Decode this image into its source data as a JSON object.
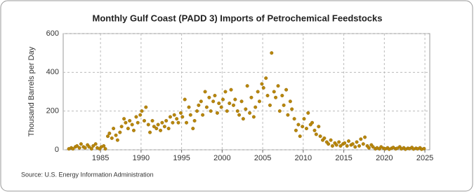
{
  "chart_data": {
    "type": "scatter",
    "title": "Monthly Gulf Coast (PADD 3) Imports of Petrochemical Feedstocks",
    "y_label": "Thousand Barrels per Day",
    "source": "Source: U.S. Energy Information Administration",
    "color": "#b8860b",
    "grid": true,
    "xlim": [
      1980.4,
      2025.6
    ],
    "ylim": [
      0,
      600
    ],
    "xticks": [
      1985,
      1990,
      1995,
      2000,
      2005,
      2010,
      2015,
      2020,
      2025
    ],
    "yticks": [
      0,
      200,
      400,
      600
    ],
    "x": [
      1981.1,
      1981.4,
      1981.6,
      1981.9,
      1982.1,
      1982.4,
      1982.6,
      1982.9,
      1983.1,
      1983.4,
      1983.6,
      1983.9,
      1984.1,
      1984.4,
      1984.6,
      1984.9,
      1985.1,
      1985.4,
      1985.6,
      1985.9,
      1986.1,
      1986.4,
      1986.6,
      1986.9,
      1987.1,
      1987.4,
      1987.6,
      1987.9,
      1988.1,
      1988.4,
      1988.6,
      1988.9,
      1989.1,
      1989.4,
      1989.6,
      1989.9,
      1990.1,
      1990.4,
      1990.6,
      1990.9,
      1991.1,
      1991.4,
      1991.6,
      1991.9,
      1992.1,
      1992.4,
      1992.6,
      1992.9,
      1993.1,
      1993.4,
      1993.6,
      1993.9,
      1994.1,
      1994.4,
      1994.6,
      1994.9,
      1995.1,
      1995.4,
      1995.6,
      1995.9,
      1996.1,
      1996.4,
      1996.6,
      1996.9,
      1997.1,
      1997.4,
      1997.6,
      1997.9,
      1998.1,
      1998.4,
      1998.6,
      1998.9,
      1999.1,
      1999.4,
      1999.6,
      1999.9,
      2000.1,
      2000.4,
      2000.6,
      2000.9,
      2001.1,
      2001.4,
      2001.6,
      2001.9,
      2002.1,
      2002.4,
      2002.6,
      2002.9,
      2003.1,
      2003.4,
      2003.6,
      2003.9,
      2004.1,
      2004.4,
      2004.6,
      2004.9,
      2005.1,
      2005.4,
      2005.6,
      2005.9,
      2006.1,
      2006.4,
      2006.6,
      2006.9,
      2007.1,
      2007.4,
      2007.6,
      2007.9,
      2008.1,
      2008.4,
      2008.6,
      2008.9,
      2009.1,
      2009.4,
      2009.6,
      2009.9,
      2010.1,
      2010.4,
      2010.6,
      2010.9,
      2011.1,
      2011.4,
      2011.6,
      2011.9,
      2012.1,
      2012.4,
      2012.6,
      2012.9,
      2013.1,
      2013.4,
      2013.6,
      2013.9,
      2014.1,
      2014.4,
      2014.6,
      2014.9,
      2015.1,
      2015.4,
      2015.6,
      2015.9,
      2016.1,
      2016.4,
      2016.6,
      2016.9,
      2017.1,
      2017.4,
      2017.6,
      2017.9,
      2018.1,
      2018.4,
      2018.6,
      2018.9,
      2019.1,
      2019.4,
      2019.6,
      2019.9,
      2020.1,
      2020.4,
      2020.6,
      2020.9,
      2021.1,
      2021.4,
      2021.6,
      2021.9,
      2022.1,
      2022.4,
      2022.6,
      2022.9,
      2023.1,
      2023.4,
      2023.6,
      2023.9,
      2024.1,
      2024.4,
      2024.6,
      2024.9
    ],
    "values": [
      5,
      10,
      5,
      15,
      20,
      10,
      30,
      15,
      10,
      25,
      15,
      5,
      20,
      30,
      10,
      5,
      15,
      20,
      5,
      70,
      85,
      60,
      110,
      75,
      50,
      90,
      120,
      160,
      140,
      110,
      150,
      130,
      100,
      170,
      140,
      180,
      200,
      150,
      220,
      130,
      90,
      150,
      120,
      110,
      130,
      100,
      140,
      120,
      150,
      110,
      170,
      140,
      180,
      160,
      140,
      190,
      170,
      260,
      140,
      220,
      180,
      110,
      150,
      200,
      230,
      250,
      180,
      300,
      220,
      270,
      200,
      250,
      280,
      190,
      240,
      220,
      260,
      300,
      200,
      240,
      310,
      230,
      260,
      200,
      180,
      250,
      160,
      210,
      330,
      190,
      270,
      170,
      220,
      300,
      250,
      340,
      320,
      370,
      280,
      230,
      500,
      300,
      270,
      330,
      200,
      280,
      230,
      310,
      180,
      250,
      210,
      160,
      100,
      130,
      70,
      120,
      160,
      110,
      190,
      130,
      140,
      100,
      80,
      120,
      70,
      50,
      60,
      40,
      30,
      50,
      20,
      35,
      25,
      40,
      20,
      30,
      35,
      20,
      45,
      25,
      30,
      15,
      40,
      20,
      55,
      30,
      65,
      20,
      10,
      25,
      15,
      5,
      10,
      5,
      15,
      8,
      5,
      10,
      3,
      8,
      12,
      5,
      8,
      15,
      5,
      10,
      3,
      8,
      6,
      12,
      4,
      8,
      5,
      10,
      3,
      6
    ]
  }
}
